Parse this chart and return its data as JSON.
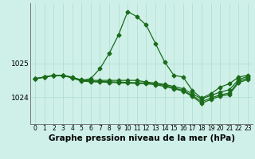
{
  "background_color": "#cff0e8",
  "line_color": "#1a6b1a",
  "grid_color": "#aaddcc",
  "xlabel": "Graphe pression niveau de la mer (hPa)",
  "yticks": [
    1024,
    1025
  ],
  "xlim": [
    -0.5,
    23.5
  ],
  "ylim": [
    1023.2,
    1026.8
  ],
  "lines": [
    {
      "x": [
        0,
        1,
        2,
        3,
        4,
        5,
        6,
        7,
        8,
        9,
        10,
        11,
        12,
        13,
        14,
        15,
        16,
        17,
        18,
        19,
        20,
        21,
        22,
        23
      ],
      "y": [
        1024.55,
        1024.6,
        1024.65,
        1024.65,
        1024.6,
        1024.5,
        1024.55,
        1024.85,
        1025.3,
        1025.85,
        1026.55,
        1026.4,
        1026.15,
        1025.6,
        1025.05,
        1024.65,
        1024.6,
        1024.2,
        1023.97,
        1024.1,
        1024.3,
        1024.4,
        1024.6,
        1024.65
      ]
    },
    {
      "x": [
        0,
        1,
        2,
        3,
        4,
        5,
        6,
        7,
        8,
        9,
        10,
        11,
        12,
        13,
        14,
        15,
        16,
        17,
        18,
        19,
        20,
        21,
        22,
        23
      ],
      "y": [
        1024.55,
        1024.6,
        1024.65,
        1024.65,
        1024.58,
        1024.52,
        1024.5,
        1024.5,
        1024.5,
        1024.5,
        1024.5,
        1024.5,
        1024.45,
        1024.42,
        1024.38,
        1024.32,
        1024.25,
        1024.1,
        1023.95,
        1024.05,
        1024.15,
        1024.22,
        1024.52,
        1024.62
      ]
    },
    {
      "x": [
        0,
        1,
        2,
        3,
        4,
        5,
        6,
        7,
        8,
        9,
        10,
        11,
        12,
        13,
        14,
        15,
        16,
        17,
        18,
        19,
        20,
        21,
        22,
        23
      ],
      "y": [
        1024.55,
        1024.6,
        1024.65,
        1024.65,
        1024.58,
        1024.5,
        1024.48,
        1024.47,
        1024.46,
        1024.45,
        1024.44,
        1024.43,
        1024.42,
        1024.4,
        1024.35,
        1024.28,
        1024.2,
        1024.05,
        1023.87,
        1023.97,
        1024.07,
        1024.12,
        1024.47,
        1024.57
      ]
    },
    {
      "x": [
        0,
        1,
        2,
        3,
        4,
        5,
        6,
        7,
        8,
        9,
        10,
        11,
        12,
        13,
        14,
        15,
        16,
        17,
        18,
        19,
        20,
        21,
        22,
        23
      ],
      "y": [
        1024.55,
        1024.6,
        1024.65,
        1024.65,
        1024.57,
        1024.48,
        1024.46,
        1024.45,
        1024.44,
        1024.43,
        1024.42,
        1024.41,
        1024.4,
        1024.37,
        1024.32,
        1024.25,
        1024.18,
        1024.02,
        1023.82,
        1023.93,
        1024.03,
        1024.08,
        1024.43,
        1024.53
      ]
    }
  ],
  "marker": "D",
  "marker_size": 2.5,
  "line_width": 0.9,
  "xtick_fontsize": 5.5,
  "ytick_fontsize": 6.5,
  "xlabel_fontsize": 7.5
}
